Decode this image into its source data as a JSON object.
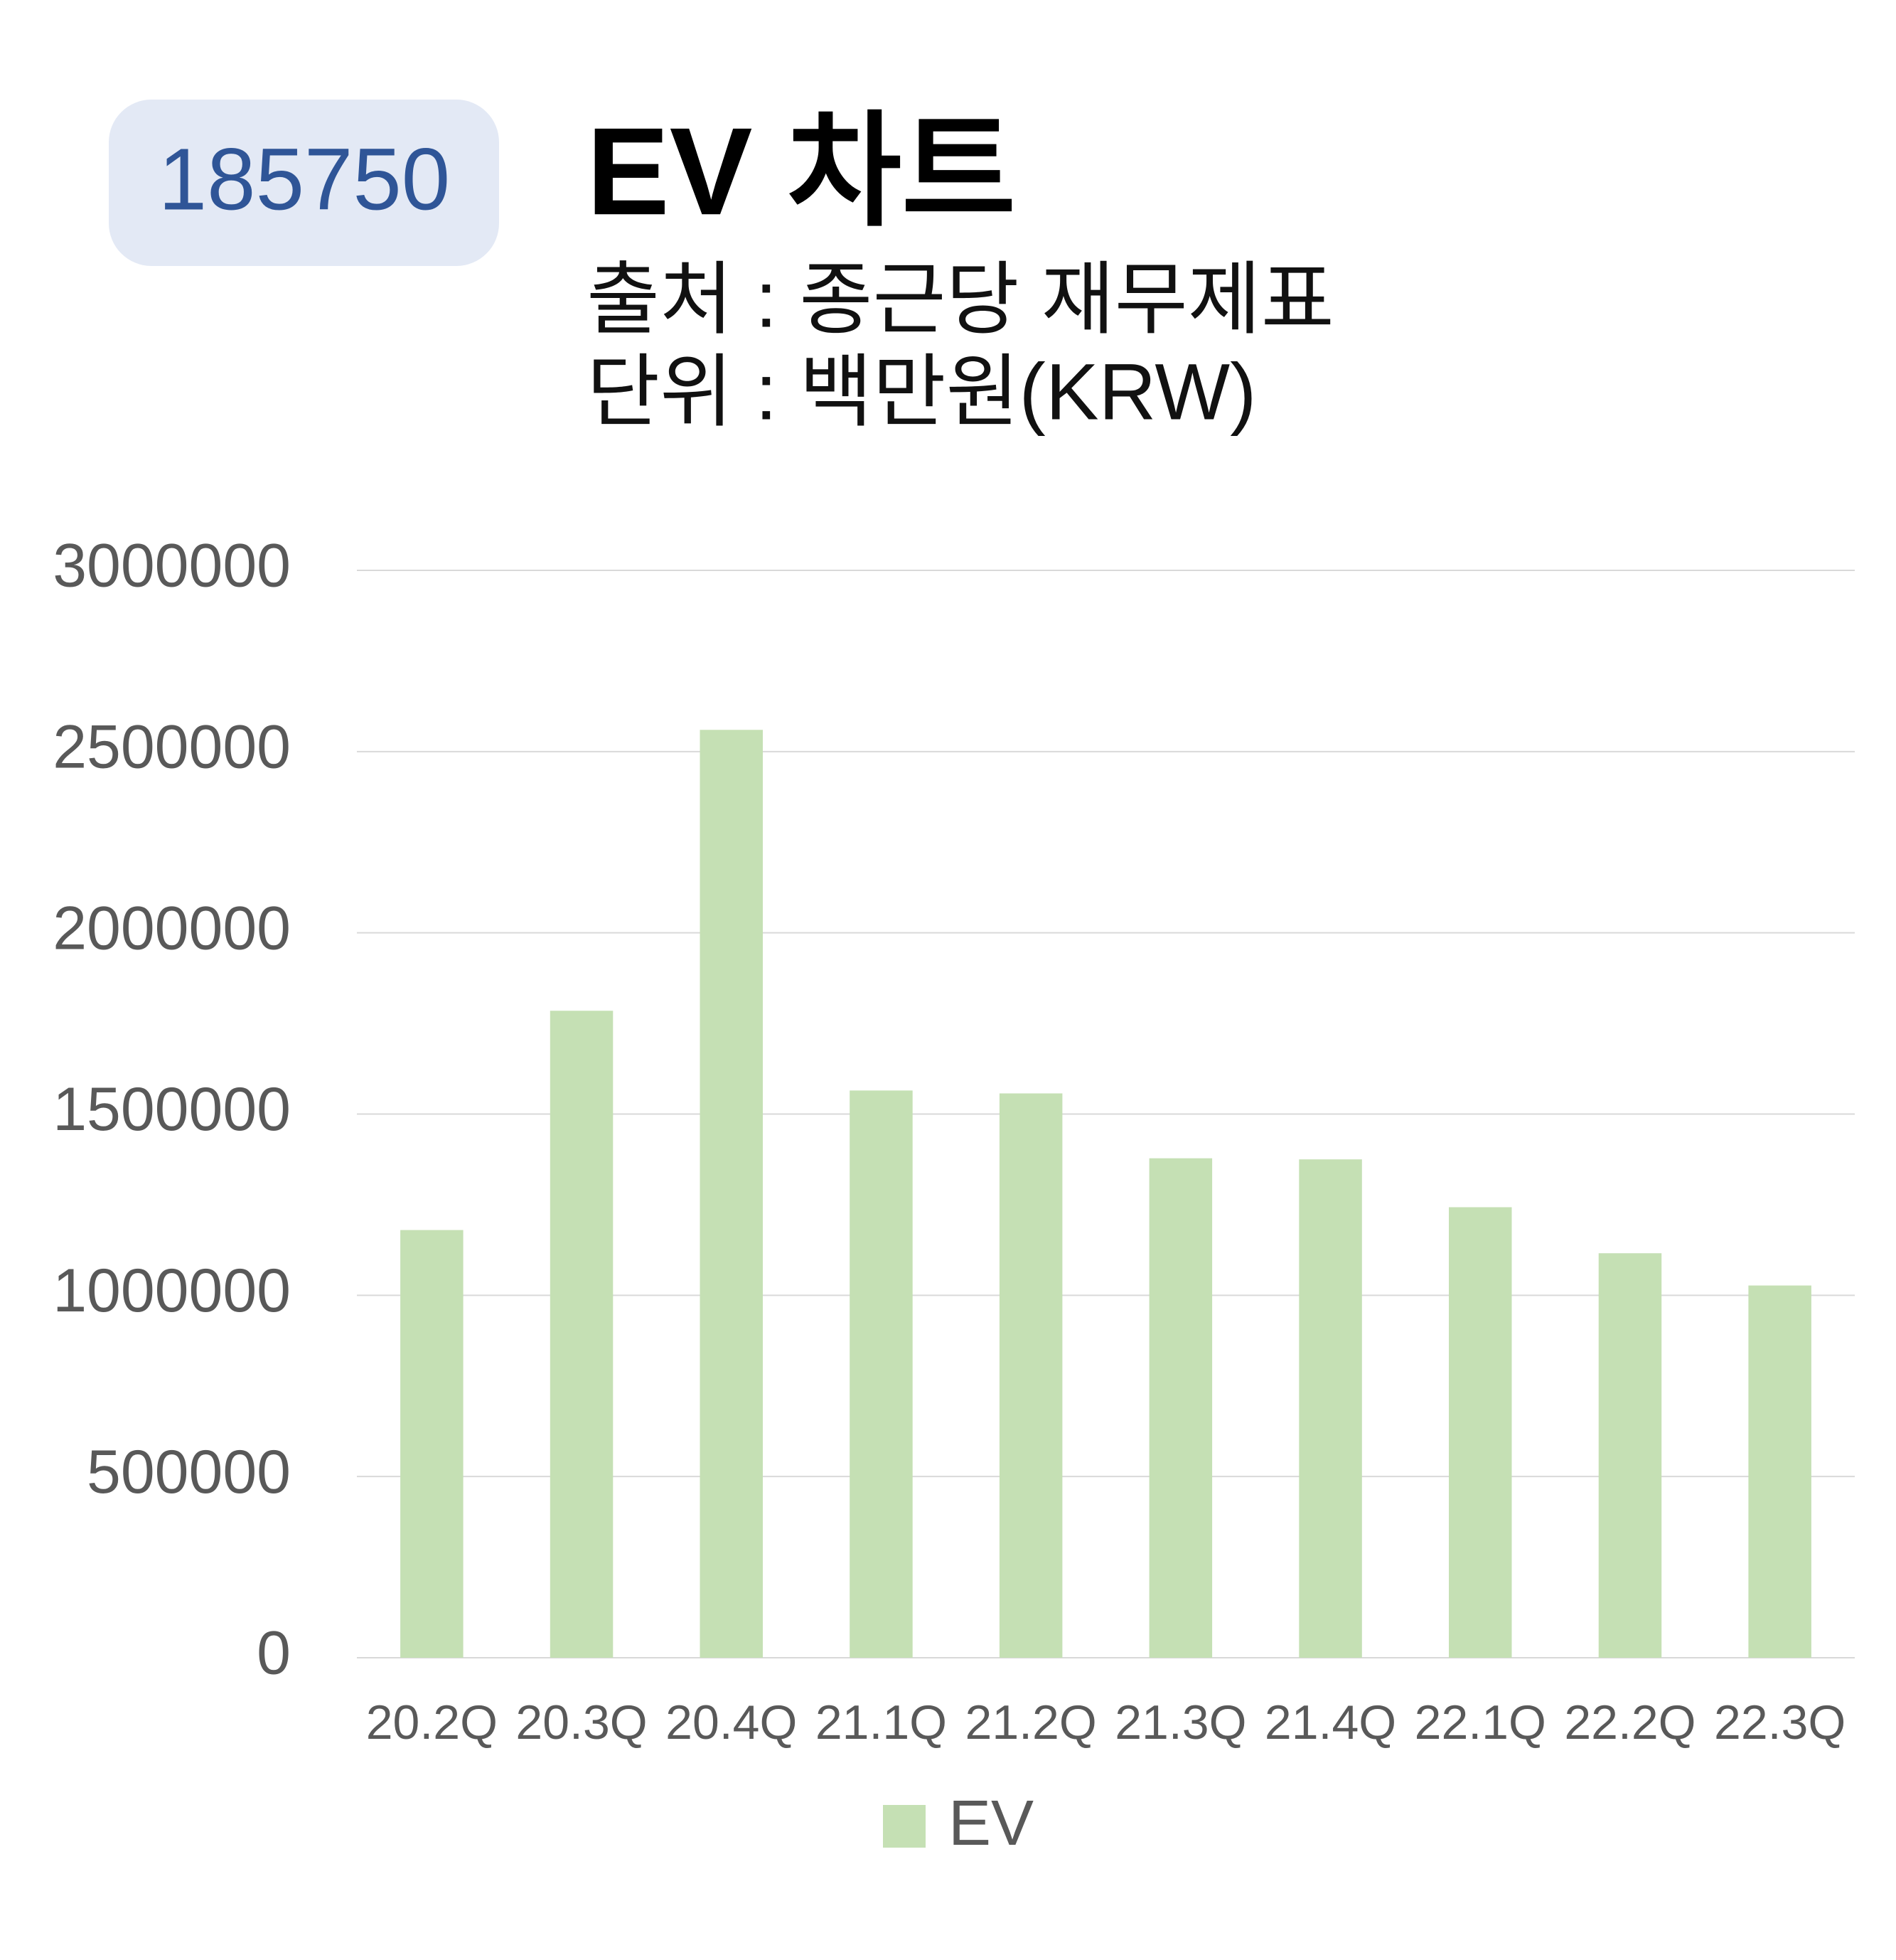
{
  "badge": "185750",
  "chart_data": {
    "type": "bar",
    "title": "EV 차트",
    "subtitle": [
      "출처 : 종근당 재무제표",
      "단위 : 백만원(KRW)"
    ],
    "categories": [
      "20.2Q",
      "20.3Q",
      "20.4Q",
      "21.1Q",
      "21.2Q",
      "21.3Q",
      "21.4Q",
      "22.1Q",
      "22.2Q",
      "22.3Q"
    ],
    "series": [
      {
        "name": "EV",
        "color": "#c5e0b4",
        "values": [
          1180000,
          1785000,
          2560000,
          1565000,
          1557000,
          1378000,
          1375000,
          1243000,
          1116000,
          1027000
        ]
      }
    ],
    "ylim": [
      0,
      3000000
    ],
    "yticks": [
      0,
      500000,
      1000000,
      1500000,
      2000000,
      2500000,
      3000000
    ],
    "grid": true,
    "legend": "bottom"
  }
}
